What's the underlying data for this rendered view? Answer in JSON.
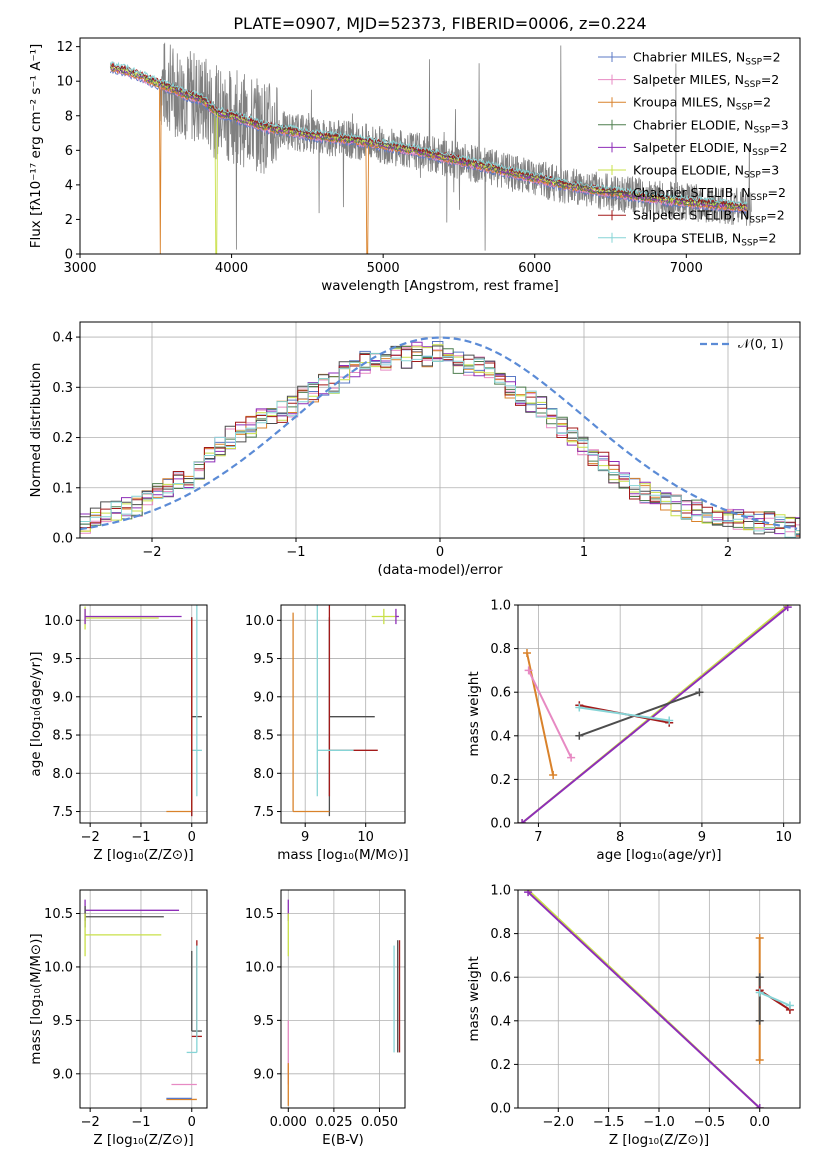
{
  "title": "PLATE=0907, MJD=52373, FIBERID=0006, z=0.224",
  "colors": {
    "Chabrier MILES": "#5b79c6",
    "Salpeter MILES": "#e78ac3",
    "Kroupa MILES": "#d9822b",
    "Chabrier ELODIE": "#4f7f4f",
    "Salpeter ELODIE": "#8e2eb8",
    "Kroupa ELODIE": "#c9e048",
    "Chabrier STELIB": "#4d4d4d",
    "Salpeter STELIB": "#a31a1a",
    "Kroupa STELIB": "#86d4d6",
    "data": "#808080",
    "normal": "#5b8bd6"
  },
  "chart_data": [
    {
      "id": "spectrum",
      "type": "line",
      "title": "PLATE=0907, MJD=52373, FIBERID=0006, z=0.224",
      "xlabel": "wavelength [Angstrom, rest frame]",
      "ylabel": "Flux [fλ10⁻¹⁷ erg cm⁻² s⁻¹ A⁻¹]",
      "xlim": [
        3000,
        7750
      ],
      "ylim": [
        0,
        12.5
      ],
      "xticks": [
        "3000",
        "4000",
        "5000",
        "6000",
        "7000"
      ],
      "yticks": [
        "0",
        "2",
        "4",
        "6",
        "8",
        "10",
        "12"
      ],
      "grid": false,
      "legend_position": "top-right",
      "legend": [
        {
          "main": "Chabrier MILES, N",
          "sub": "SSP",
          "tail": "=2"
        },
        {
          "main": "Salpeter MILES, N",
          "sub": "SSP",
          "tail": "=2"
        },
        {
          "main": "Kroupa MILES, N",
          "sub": "SSP",
          "tail": "=2"
        },
        {
          "main": "Chabrier ELODIE, N",
          "sub": "SSP",
          "tail": "=3"
        },
        {
          "main": "Salpeter ELODIE, N",
          "sub": "SSP",
          "tail": "=2"
        },
        {
          "main": "Kroupa ELODIE, N",
          "sub": "SSP",
          "tail": "=3"
        },
        {
          "main": "Chabrier STELIB, N",
          "sub": "SSP",
          "tail": "=2"
        },
        {
          "main": "Salpeter STELIB, N",
          "sub": "SSP",
          "tail": "=2"
        },
        {
          "main": "Kroupa STELIB, N",
          "sub": "SSP",
          "tail": "=2"
        }
      ],
      "model_continuum": {
        "x": [
          3200,
          3300,
          3400,
          3500,
          3600,
          3700,
          3800,
          3900,
          4000,
          4100,
          4200,
          4300,
          4400,
          4500,
          4600,
          4700,
          4800,
          4900,
          5000,
          5200,
          5400,
          5600,
          5800,
          6000,
          6200,
          6400,
          6600,
          6800,
          7000,
          7200,
          7400
        ],
        "y": [
          10.8,
          10.6,
          10.3,
          9.9,
          9.6,
          9.2,
          9.0,
          8.2,
          8.0,
          7.7,
          7.4,
          7.2,
          7.1,
          6.9,
          6.8,
          6.7,
          6.6,
          6.45,
          6.3,
          6.0,
          5.6,
          5.2,
          4.8,
          4.4,
          4.0,
          3.7,
          3.45,
          3.2,
          3.0,
          2.85,
          2.7
        ]
      },
      "model_dips": [
        {
          "series": "Kroupa MILES",
          "x": 3530,
          "to": 0
        },
        {
          "series": "Kroupa ELODIE",
          "x": 3900,
          "to": 0
        },
        {
          "series": "Kroupa MILES",
          "x": 4895,
          "to": 0
        }
      ],
      "data_range": [
        3530,
        7430
      ]
    },
    {
      "id": "residuals",
      "type": "histogram",
      "xlabel": "(data-model)/error",
      "ylabel": "Normed distribution",
      "xlim": [
        -2.5,
        2.5
      ],
      "ylim": [
        0,
        0.43
      ],
      "xticks": [
        "−2",
        "−1",
        "0",
        "1",
        "2"
      ],
      "yticks": [
        "0.0",
        "0.1",
        "0.2",
        "0.3",
        "0.4"
      ],
      "grid": true,
      "legend_position": "top-right",
      "legend": [
        {
          "label": "𝒩(0, 1)"
        }
      ],
      "bin_width": 0.1,
      "base_profile": [
        0.03,
        0.04,
        0.05,
        0.055,
        0.06,
        0.065,
        0.08,
        0.09,
        0.1,
        0.11,
        0.12,
        0.135,
        0.16,
        0.18,
        0.2,
        0.21,
        0.22,
        0.235,
        0.245,
        0.25,
        0.26,
        0.28,
        0.29,
        0.305,
        0.31,
        0.33,
        0.34,
        0.35,
        0.36,
        0.35,
        0.37,
        0.36,
        0.37,
        0.36,
        0.37,
        0.36,
        0.35,
        0.345,
        0.34,
        0.33,
        0.31,
        0.3,
        0.28,
        0.27,
        0.26,
        0.24,
        0.22,
        0.2,
        0.18,
        0.16,
        0.15,
        0.13,
        0.12,
        0.1,
        0.09,
        0.08,
        0.07,
        0.065,
        0.06,
        0.055,
        0.05,
        0.045,
        0.04,
        0.04,
        0.035,
        0.03,
        0.03,
        0.025,
        0.02,
        0.02
      ]
    },
    {
      "id": "age-vs-Z",
      "type": "errorbar",
      "xlabel": "Z [log₁₀(Z/Z⊙)]",
      "ylabel": "age  [log₁₀(age/yr)]",
      "xlim": [
        -2.2,
        0.3
      ],
      "ylim": [
        7.35,
        10.2
      ],
      "xticks": [
        "−2",
        "−1",
        "0"
      ],
      "yticks": [
        "7.5",
        "8.0",
        "8.5",
        "9.0",
        "9.5",
        "10.0"
      ],
      "grid": true,
      "points": [
        {
          "series": "Kroupa ELODIE",
          "x": -2.1,
          "y": 10.03,
          "xerr": [
            0,
            1.45
          ],
          "yerr": [
            0.15,
            0.15
          ]
        },
        {
          "series": "Salpeter ELODIE",
          "x": -2.1,
          "y": 10.05,
          "xerr": [
            0,
            1.9
          ],
          "yerr": [
            0.1,
            0.1
          ]
        },
        {
          "series": "Chabrier STELIB",
          "x": 0.0,
          "y": 8.74,
          "xerr": [
            0,
            0.2
          ],
          "yerr": [
            1.3,
            1.3
          ]
        },
        {
          "series": "Kroupa STELIB",
          "x": 0.1,
          "y": 8.3,
          "xerr": [
            0.1,
            0.1
          ],
          "yerr": [
            0.6,
            2.0
          ]
        },
        {
          "series": "Kroupa MILES",
          "x": 0.0,
          "y": 7.5,
          "xerr": [
            0.5,
            0.0
          ],
          "yerr": [
            0.0,
            2.5
          ]
        },
        {
          "series": "Salpeter STELIB",
          "x": 0.0,
          "y": 8.74,
          "xerr": [
            0,
            0
          ],
          "yerr": [
            1.3,
            1.3
          ]
        }
      ]
    },
    {
      "id": "age-vs-mass",
      "type": "errorbar",
      "xlabel": "mass [log₁₀(M/M⊙)]",
      "ylabel": "",
      "xlim": [
        8.6,
        10.65
      ],
      "ylim": [
        7.35,
        10.2
      ],
      "xticks": [
        "9",
        "10"
      ],
      "yticks": [
        "7.5",
        "8.0",
        "8.5",
        "9.0",
        "9.5",
        "10.0"
      ],
      "grid": true,
      "points": [
        {
          "series": "Kroupa ELODIE",
          "x": 10.3,
          "y": 10.05,
          "xerr": [
            0.2,
            0.2
          ],
          "yerr": [
            0.1,
            0.1
          ]
        },
        {
          "series": "Salpeter ELODIE",
          "x": 10.5,
          "y": 10.05,
          "xerr": [
            0.0,
            0.05
          ],
          "yerr": [
            0.1,
            0.1
          ]
        },
        {
          "series": "Chabrier STELIB",
          "x": 9.4,
          "y": 8.74,
          "xerr": [
            0.0,
            0.75
          ],
          "yerr": [
            1.3,
            1.3
          ]
        },
        {
          "series": "Salpeter STELIB",
          "x": 9.4,
          "y": 8.3,
          "xerr": [
            0.0,
            0.8
          ],
          "yerr": [
            0.6,
            2.0
          ]
        },
        {
          "series": "Kroupa STELIB",
          "x": 9.2,
          "y": 8.3,
          "xerr": [
            0.0,
            0.6
          ],
          "yerr": [
            0.6,
            2.0
          ]
        },
        {
          "series": "Kroupa MILES",
          "x": 8.8,
          "y": 7.5,
          "xerr": [
            0.0,
            0.6
          ],
          "yerr": [
            0.0,
            2.6
          ]
        }
      ]
    },
    {
      "id": "mass-weight-vs-age",
      "type": "line",
      "xlabel": "age  [log₁₀(age/yr)]",
      "ylabel": "mass weight",
      "xlim": [
        6.75,
        10.2
      ],
      "ylim": [
        0,
        1
      ],
      "xticks": [
        "7",
        "8",
        "9",
        "10"
      ],
      "yticks": [
        "0.0",
        "0.2",
        "0.4",
        "0.6",
        "0.8",
        "1.0"
      ],
      "grid": true,
      "series": [
        {
          "name": "Kroupa ELODIE",
          "x": [
            6.8,
            10.05
          ],
          "y": [
            0.0,
            1.0
          ]
        },
        {
          "name": "Salpeter ELODIE",
          "x": [
            6.8,
            10.05
          ],
          "y": [
            0.0,
            0.99
          ]
        },
        {
          "name": "Chabrier STELIB",
          "x": [
            7.5,
            8.97
          ],
          "y": [
            0.4,
            0.6
          ]
        },
        {
          "name": "Salpeter STELIB",
          "x": [
            7.5,
            8.6
          ],
          "y": [
            0.54,
            0.46
          ]
        },
        {
          "name": "Kroupa STELIB",
          "x": [
            7.5,
            8.6
          ],
          "y": [
            0.53,
            0.47
          ]
        },
        {
          "name": "Kroupa MILES",
          "x": [
            6.86,
            7.18
          ],
          "y": [
            0.78,
            0.22
          ]
        },
        {
          "name": "Salpeter MILES",
          "x": [
            6.88,
            7.4
          ],
          "y": [
            0.7,
            0.3
          ]
        }
      ]
    },
    {
      "id": "mass-vs-Z",
      "type": "errorbar",
      "xlabel": "Z [log₁₀(Z/Z⊙)]",
      "ylabel": "mass [log₁₀(M/M⊙)]",
      "xlim": [
        -2.2,
        0.3
      ],
      "ylim": [
        8.68,
        10.72
      ],
      "xticks": [
        "−2",
        "−1",
        "0"
      ],
      "yticks": [
        "9.0",
        "9.5",
        "10.0",
        "10.5"
      ],
      "grid": true,
      "points": [
        {
          "series": "Salpeter ELODIE",
          "x": -2.1,
          "y": 10.53,
          "xerr": [
            0,
            1.85
          ],
          "yerr": [
            0.1,
            0.1
          ]
        },
        {
          "series": "Chabrier STELIB",
          "x": -2.1,
          "y": 10.47,
          "xerr": [
            0,
            1.55
          ],
          "yerr": [
            0.1,
            0.1
          ]
        },
        {
          "series": "Kroupa ELODIE",
          "x": -2.1,
          "y": 10.3,
          "xerr": [
            0,
            1.5
          ],
          "yerr": [
            0.2,
            0.2
          ]
        },
        {
          "series": "Chabrier STELIB",
          "x": 0.0,
          "y": 9.4,
          "xerr": [
            0,
            0.2
          ],
          "yerr": [
            0.0,
            0.75
          ]
        },
        {
          "series": "Salpeter STELIB",
          "x": 0.1,
          "y": 9.35,
          "xerr": [
            0.1,
            0.1
          ],
          "yerr": [
            0.0,
            0.9
          ]
        },
        {
          "series": "Kroupa STELIB",
          "x": 0.1,
          "y": 9.2,
          "xerr": [
            0.2,
            0.0
          ],
          "yerr": [
            0.0,
            1.0
          ]
        },
        {
          "series": "Salpeter MILES",
          "x": -0.4,
          "y": 8.9,
          "xerr": [
            0,
            0.5
          ],
          "yerr": [
            0,
            0
          ]
        },
        {
          "series": "Kroupa MILES",
          "x": -0.5,
          "y": 8.76,
          "xerr": [
            0,
            0.6
          ],
          "yerr": [
            0,
            0
          ]
        },
        {
          "series": "Chabrier MILES",
          "x": -0.5,
          "y": 8.77,
          "xerr": [
            0,
            0.5
          ],
          "yerr": [
            0,
            0
          ]
        }
      ]
    },
    {
      "id": "mass-vs-EBV",
      "type": "errorbar",
      "xlabel": "E(B-V)",
      "ylabel": "",
      "xlim": [
        -0.004,
        0.064
      ],
      "ylim": [
        8.68,
        10.72
      ],
      "xticks": [
        "0.000",
        "0.025",
        "0.050"
      ],
      "yticks": [
        "9.0",
        "9.5",
        "10.0",
        "10.5"
      ],
      "grid": true,
      "points": [
        {
          "series": "Salpeter ELODIE",
          "x": 0.0,
          "y": 10.53,
          "xerr": [
            0,
            0
          ],
          "yerr": [
            0.1,
            0.1
          ]
        },
        {
          "series": "Kroupa ELODIE",
          "x": 0.0,
          "y": 10.3,
          "xerr": [
            0,
            0
          ],
          "yerr": [
            0.2,
            0.2
          ]
        },
        {
          "series": "Salpeter MILES",
          "x": 0.0,
          "y": 9.2,
          "xerr": [
            0,
            0
          ],
          "yerr": [
            0.3,
            0.3
          ]
        },
        {
          "series": "Kroupa MILES",
          "x": 0.0,
          "y": 8.9,
          "xerr": [
            0,
            0
          ],
          "yerr": [
            0.2,
            0.2
          ]
        },
        {
          "series": "Kroupa STELIB",
          "x": 0.058,
          "y": 9.4,
          "xerr": [
            0,
            0
          ],
          "yerr": [
            0.2,
            0.8
          ]
        },
        {
          "series": "Chabrier STELIB",
          "x": 0.06,
          "y": 9.6,
          "xerr": [
            0,
            0
          ],
          "yerr": [
            0.4,
            0.65
          ]
        },
        {
          "series": "Salpeter STELIB",
          "x": 0.061,
          "y": 9.6,
          "xerr": [
            0,
            0
          ],
          "yerr": [
            0.4,
            0.65
          ]
        }
      ]
    },
    {
      "id": "mass-weight-vs-Z",
      "type": "line",
      "xlabel": "Z [log₁₀(Z/Z⊙)]",
      "ylabel": "mass weight",
      "xlim": [
        -2.4,
        0.4
      ],
      "ylim": [
        0,
        1
      ],
      "xticks": [
        "−2.0",
        "−1.5",
        "−1.0",
        "−0.5",
        "0.0"
      ],
      "yticks": [
        "0.0",
        "0.2",
        "0.4",
        "0.6",
        "0.8",
        "1.0"
      ],
      "grid": true,
      "series": [
        {
          "name": "Kroupa ELODIE",
          "x": [
            -2.3,
            0.0
          ],
          "y": [
            1.0,
            0.0
          ]
        },
        {
          "name": "Salpeter ELODIE",
          "x": [
            -2.3,
            0.0
          ],
          "y": [
            0.99,
            0.0
          ]
        },
        {
          "name": "Kroupa MILES",
          "x": [
            0.0,
            0.0
          ],
          "y": [
            0.78,
            0.22
          ]
        },
        {
          "name": "Chabrier STELIB",
          "x": [
            0.0,
            0.0
          ],
          "y": [
            0.6,
            0.4
          ]
        },
        {
          "name": "Salpeter STELIB",
          "x": [
            0.0,
            0.3
          ],
          "y": [
            0.54,
            0.45
          ]
        },
        {
          "name": "Kroupa STELIB",
          "x": [
            0.0,
            0.3
          ],
          "y": [
            0.53,
            0.47
          ]
        }
      ]
    }
  ]
}
